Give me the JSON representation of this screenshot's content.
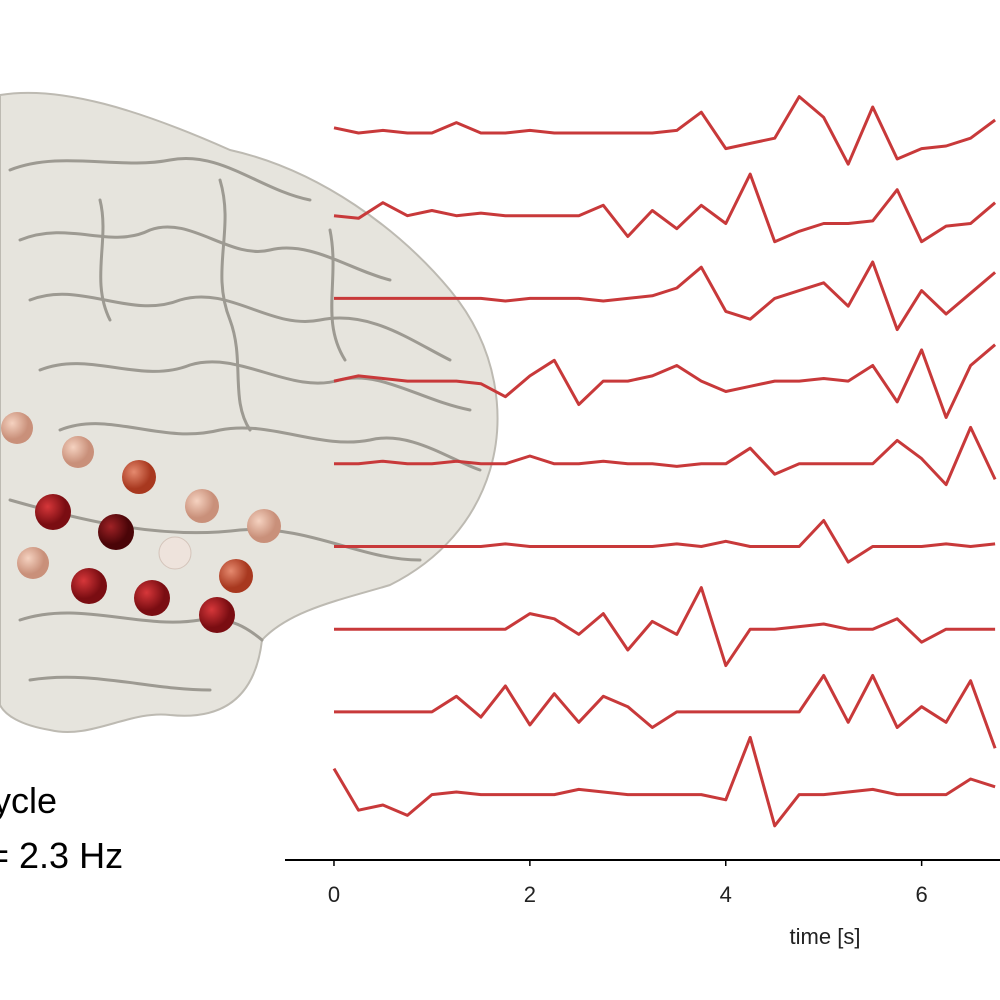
{
  "chart_data": {
    "type": "line",
    "xlabel": "time [s]",
    "annotations": [
      "cycle",
      "= 2.3 Hz"
    ],
    "x": [
      0,
      0.25,
      0.5,
      0.75,
      1,
      1.25,
      1.5,
      1.75,
      2,
      2.25,
      2.5,
      2.75,
      3,
      3.25,
      3.5,
      3.75,
      4,
      4.25,
      4.5,
      4.75,
      5,
      5.25,
      5.5,
      5.75,
      6,
      6.25,
      6.5,
      6.75
    ],
    "xlim": [
      -0.5,
      6.8
    ],
    "xticks": [
      0,
      2,
      4,
      6
    ],
    "series": [
      {
        "color": "#c8393a",
        "values": [
          0.2,
          0,
          0.1,
          0,
          0,
          0.4,
          0,
          0,
          0.1,
          0,
          0,
          0,
          0,
          0,
          0.1,
          0.8,
          -0.6,
          -0.4,
          -0.2,
          1.4,
          0.6,
          -1.2,
          1.0,
          -1.0,
          -0.6,
          -0.5,
          -0.2,
          0.5
        ]
      },
      {
        "color": "#c8393a",
        "values": [
          0,
          -0.1,
          0.5,
          0,
          0.2,
          0,
          0.1,
          0,
          0,
          0,
          0,
          0.4,
          -0.8,
          0.2,
          -0.5,
          0.4,
          -0.3,
          1.6,
          -1.0,
          -0.6,
          -0.3,
          -0.3,
          -0.2,
          1.0,
          -1.0,
          -0.4,
          -0.3,
          0.5
        ]
      },
      {
        "color": "#c8393a",
        "values": [
          0,
          0,
          0,
          0,
          0,
          0,
          0,
          -0.1,
          0,
          0,
          0,
          -0.1,
          0,
          0.1,
          0.4,
          1.2,
          -0.5,
          -0.8,
          0,
          0.3,
          0.6,
          -0.3,
          1.4,
          -1.2,
          0.3,
          -0.6,
          0.2,
          1.0
        ]
      },
      {
        "color": "#c8393a",
        "values": [
          0,
          0.2,
          0.1,
          0,
          0,
          0,
          -0.1,
          -0.6,
          0.2,
          0.8,
          -0.9,
          0,
          0,
          0.2,
          0.6,
          0,
          -0.4,
          -0.2,
          0,
          0,
          0.1,
          0,
          0.6,
          -0.8,
          1.2,
          -1.4,
          0.6,
          1.4
        ]
      },
      {
        "color": "#c8393a",
        "values": [
          0,
          0,
          0.1,
          0,
          0,
          0.1,
          0,
          0,
          0.3,
          0,
          0,
          0.1,
          0,
          0,
          -0.1,
          0,
          0,
          0.6,
          -0.4,
          0,
          0,
          0,
          0,
          0.9,
          0.2,
          -0.8,
          1.4,
          -0.6
        ]
      },
      {
        "color": "#c8393a",
        "values": [
          0,
          0,
          0,
          0,
          0,
          0,
          0,
          0.1,
          0,
          0,
          0,
          0,
          0,
          0,
          0.1,
          0,
          0.2,
          0,
          0,
          0,
          1.0,
          -0.6,
          0,
          0,
          0,
          0.1,
          0,
          0.1
        ]
      },
      {
        "color": "#c8393a",
        "values": [
          0,
          0,
          0,
          0,
          0,
          0,
          0,
          0,
          0.6,
          0.4,
          -0.2,
          0.6,
          -0.8,
          0.3,
          -0.2,
          1.6,
          -1.4,
          0,
          0,
          0.1,
          0.2,
          0,
          0,
          0.4,
          -0.5,
          0,
          0,
          0
        ]
      },
      {
        "color": "#c8393a",
        "values": [
          0,
          0,
          0,
          0,
          0,
          0.6,
          -0.2,
          1.0,
          -0.5,
          0.7,
          -0.4,
          0.6,
          0.2,
          -0.6,
          0,
          0,
          0,
          0,
          0,
          0,
          1.4,
          -0.4,
          1.4,
          -0.6,
          0.2,
          -0.4,
          1.2,
          -1.4
        ]
      },
      {
        "color": "#c8393a",
        "values": [
          1.0,
          -0.6,
          -0.4,
          -0.8,
          0,
          0.1,
          0,
          0,
          0,
          0,
          0.2,
          0.1,
          0,
          0,
          0,
          0,
          -0.2,
          2.2,
          -1.2,
          0,
          0,
          0.1,
          0.2,
          0,
          0,
          0,
          0.6,
          0.3
        ]
      }
    ]
  }
}
